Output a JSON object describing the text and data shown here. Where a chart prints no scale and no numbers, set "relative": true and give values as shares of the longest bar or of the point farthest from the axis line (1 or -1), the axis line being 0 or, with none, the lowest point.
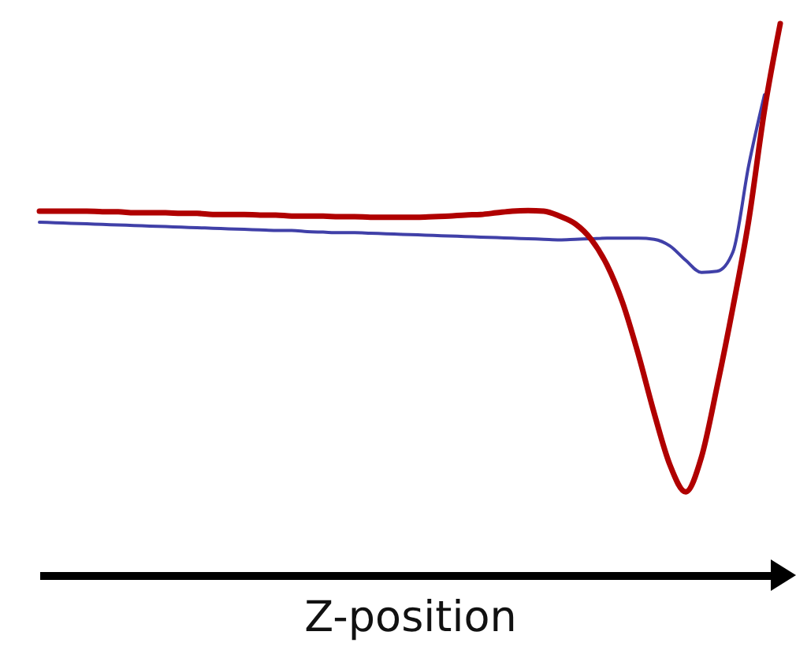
{
  "chart_data": {
    "type": "line",
    "xlabel": "Z-position",
    "relative": true,
    "tick_labels": false,
    "categories": [
      null,
      null,
      null,
      null,
      null,
      null,
      null,
      null,
      null,
      null,
      null,
      null,
      null,
      null,
      null,
      null,
      null,
      null,
      null,
      null,
      null,
      null,
      null,
      null,
      null,
      null,
      null,
      null,
      null,
      null,
      null,
      null,
      null,
      null,
      null,
      null,
      null,
      null,
      null,
      null,
      null,
      null,
      null,
      null,
      null,
      null,
      null,
      null
    ],
    "series": [
      {
        "color": "#4040a8",
        "values": [
          0.64,
          0.639,
          0.638,
          0.637,
          0.636,
          0.635,
          0.634,
          0.633,
          0.632,
          0.631,
          0.63,
          0.629,
          0.628,
          0.627,
          0.626,
          0.625,
          0.625,
          0.623,
          0.622,
          0.621,
          0.621,
          0.62,
          0.619,
          0.618,
          0.617,
          0.616,
          0.615,
          0.614,
          0.613,
          0.612,
          0.611,
          0.61,
          0.609,
          0.608,
          0.609,
          0.61,
          0.611,
          0.611,
          0.611,
          0.609,
          0.597,
          0.571,
          0.549,
          0.551,
          0.586,
          0.743,
          0.871,
          null
        ]
      },
      {
        "color": "#b00000",
        "values": [
          0.66,
          0.66,
          0.66,
          0.66,
          0.659,
          0.659,
          0.657,
          0.657,
          0.657,
          0.656,
          0.656,
          0.654,
          0.654,
          0.654,
          0.653,
          0.653,
          0.651,
          0.651,
          0.651,
          0.65,
          0.65,
          0.649,
          0.649,
          0.649,
          0.649,
          0.65,
          0.651,
          0.653,
          0.654,
          0.657,
          0.66,
          0.661,
          0.66,
          0.651,
          0.637,
          0.609,
          0.563,
          0.494,
          0.4,
          0.294,
          0.2,
          0.151,
          0.214,
          0.343,
          0.486,
          0.643,
          0.843,
          1
        ]
      }
    ]
  }
}
